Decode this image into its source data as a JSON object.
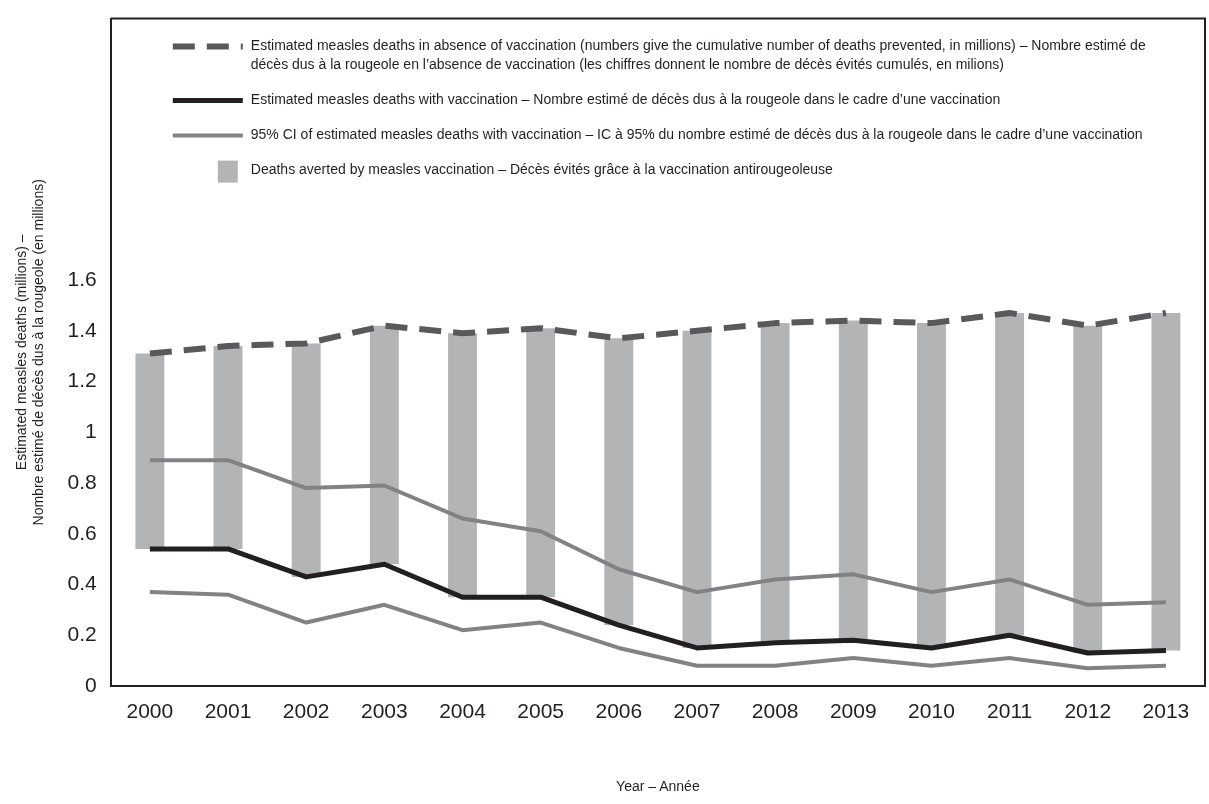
{
  "chart_data": {
    "type": "line",
    "xlabel": "Year – Année",
    "ylabel": "Estimated measles deaths (millions) –\nNombre estimé de décès dus à la rougeole (en millions)",
    "categories": [
      "2000",
      "2001",
      "2002",
      "2003",
      "2004",
      "2005",
      "2006",
      "2007",
      "2008",
      "2009",
      "2010",
      "2011",
      "2012",
      "2013"
    ],
    "ylim": [
      0,
      2.63
    ],
    "yticks": [
      0,
      0.2,
      0.4,
      0.6,
      0.8,
      1,
      1.2,
      1.4,
      1.6
    ],
    "grid": false,
    "legend": "top",
    "marker": "none",
    "series": [
      {
        "name": "Estimated measles deaths in absence of vaccination (numbers give the cumulative number of deaths prevented, in millions) – Nombre estimé de décès dus à la rougeole en l’absence de vaccination (les chiffres donnent le nombre de décès évités cumulés, en milions)",
        "line_style": "dashed",
        "color": "#58595b",
        "values": [
          1.31,
          1.34,
          1.35,
          1.42,
          1.39,
          1.41,
          1.37,
          1.4,
          1.43,
          1.44,
          1.43,
          1.47,
          1.42,
          1.47
        ]
      },
      {
        "name": "Estimated measles deaths with vaccination – Nombre estimé de décès dus à la rougeole dans le cadre d’une vaccination",
        "line_style": "solid",
        "color": "#231f20",
        "values": [
          0.54,
          0.54,
          0.43,
          0.48,
          0.35,
          0.35,
          0.24,
          0.15,
          0.17,
          0.18,
          0.15,
          0.2,
          0.13,
          0.14
        ]
      },
      {
        "name": "95% CI of estimated measles deaths with vaccination – IC à 95% du nombre estimé de décès dus à la rougeole dans le cadre d’une vaccination",
        "line_style": "solid",
        "color": "#808285",
        "values": [
          0.89,
          0.89,
          0.78,
          0.79,
          0.66,
          0.61,
          0.46,
          0.37,
          0.42,
          0.44,
          0.37,
          0.42,
          0.32,
          0.33
        ]
      },
      {
        "line_style": "solid",
        "color": "#808285",
        "values": [
          0.37,
          0.36,
          0.25,
          0.32,
          0.22,
          0.25,
          0.15,
          0.08,
          0.08,
          0.11,
          0.08,
          0.11,
          0.07,
          0.08
        ]
      },
      {
        "name": "Deaths averted by measles vaccination – Décès évités grâce à la vaccination antirougeoleuse",
        "type": "bar",
        "color": "#b3b4b6",
        "base": [
          0.54,
          0.54,
          0.43,
          0.48,
          0.35,
          0.35,
          0.24,
          0.15,
          0.17,
          0.18,
          0.15,
          0.2,
          0.13,
          0.14
        ],
        "values": [
          0.77,
          0.8,
          0.92,
          0.94,
          1.04,
          1.06,
          1.13,
          1.25,
          1.26,
          1.26,
          1.28,
          1.27,
          1.29,
          1.33
        ]
      }
    ]
  }
}
